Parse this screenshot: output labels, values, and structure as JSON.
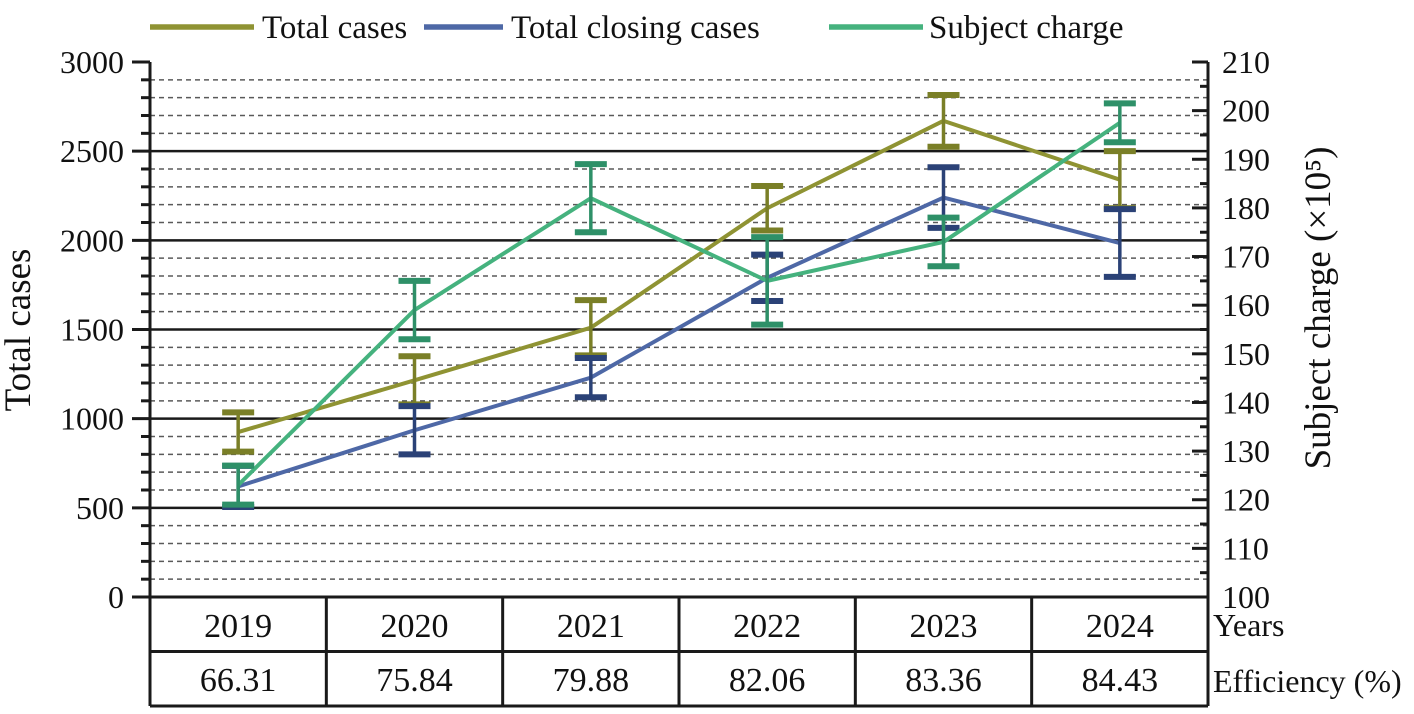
{
  "chart_data": {
    "type": "line",
    "title": "",
    "categories": [
      "2019",
      "2020",
      "2021",
      "2022",
      "2023",
      "2024"
    ],
    "series": [
      {
        "name": "Total cases",
        "axis": "left",
        "color": "#8f9333",
        "error_color": "#7a7f27",
        "values": [
          925,
          1215,
          1510,
          2180,
          2670,
          2340
        ],
        "errors": [
          110,
          135,
          155,
          125,
          145,
          160
        ]
      },
      {
        "name": "Total closing cases",
        "axis": "left",
        "color": "#4e68a6",
        "error_color": "#2b4277",
        "values": [
          620,
          935,
          1230,
          1790,
          2240,
          1985
        ],
        "errors": [
          115,
          135,
          110,
          130,
          170,
          190
        ]
      },
      {
        "name": "Subject charge",
        "axis": "right",
        "color": "#45b27e",
        "error_color": "#2e9068",
        "values": [
          123,
          159,
          182,
          165,
          173,
          197.5
        ],
        "errors": [
          4,
          6,
          7,
          9,
          5,
          4
        ]
      }
    ],
    "left_axis": {
      "label": "Total cases",
      "min": 0,
      "max": 3000,
      "major_step": 500,
      "minor_step": 100
    },
    "right_axis": {
      "label": "Subject charge (×10⁵)",
      "min": 100,
      "max": 210,
      "major_step": 10,
      "minor_step": 5
    },
    "x_axis_label": "Years",
    "table": {
      "row1_values": [
        "2019",
        "2020",
        "2021",
        "2022",
        "2023",
        "2024"
      ],
      "row2_label": "Efficiency (%)",
      "row2_values": [
        "66.31",
        "75.84",
        "79.88",
        "82.06",
        "83.36",
        "84.43"
      ]
    },
    "grid": {
      "solid_step": 500,
      "dashed_step": 100,
      "grid_on": true
    },
    "legend_position": "top",
    "colors": {
      "axis": "#1a1a1a",
      "dashed_grid": "#5a5a5a",
      "solid_grid": "#1a1a1a",
      "text": "#111111"
    }
  }
}
